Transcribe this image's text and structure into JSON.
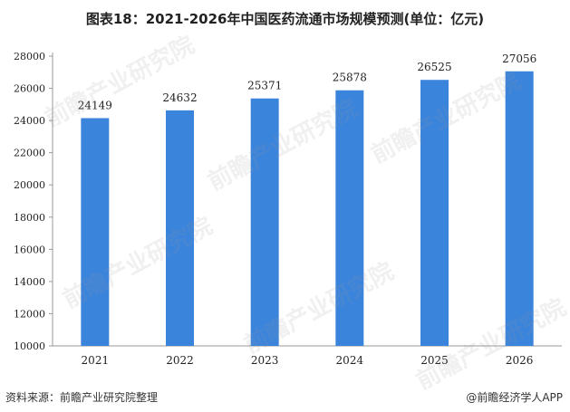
{
  "title": "图表18：2021-2026年中国医药流通市场规模预测(单位：亿元)",
  "source_note": "资料来源：前瞻产业研究院整理",
  "brand_note": "@前瞻经济学人APP",
  "watermark_text": "前瞻产业研究院",
  "colors": {
    "bar": "#3B84DC",
    "axis": "#999999",
    "text": "#222222"
  },
  "chart_data": {
    "type": "bar",
    "title": "图表18：2021-2026年中国医药流通市场规模预测(单位：亿元)",
    "xlabel": "",
    "ylabel": "",
    "categories": [
      "2021",
      "2022",
      "2023",
      "2024",
      "2025",
      "2026"
    ],
    "values": [
      24149,
      24632,
      25371,
      25878,
      26525,
      27056
    ],
    "data_labels": [
      "24149",
      "24632",
      "25371",
      "25878",
      "26525",
      "27056"
    ],
    "ylim": [
      10000,
      28000
    ],
    "yticks": [
      10000,
      12000,
      14000,
      16000,
      18000,
      20000,
      22000,
      24000,
      26000,
      28000
    ],
    "ytick_labels": [
      "10000",
      "12000",
      "14000",
      "16000",
      "18000",
      "20000",
      "22000",
      "24000",
      "26000",
      "28000"
    ],
    "grid": false,
    "legend": "none"
  }
}
